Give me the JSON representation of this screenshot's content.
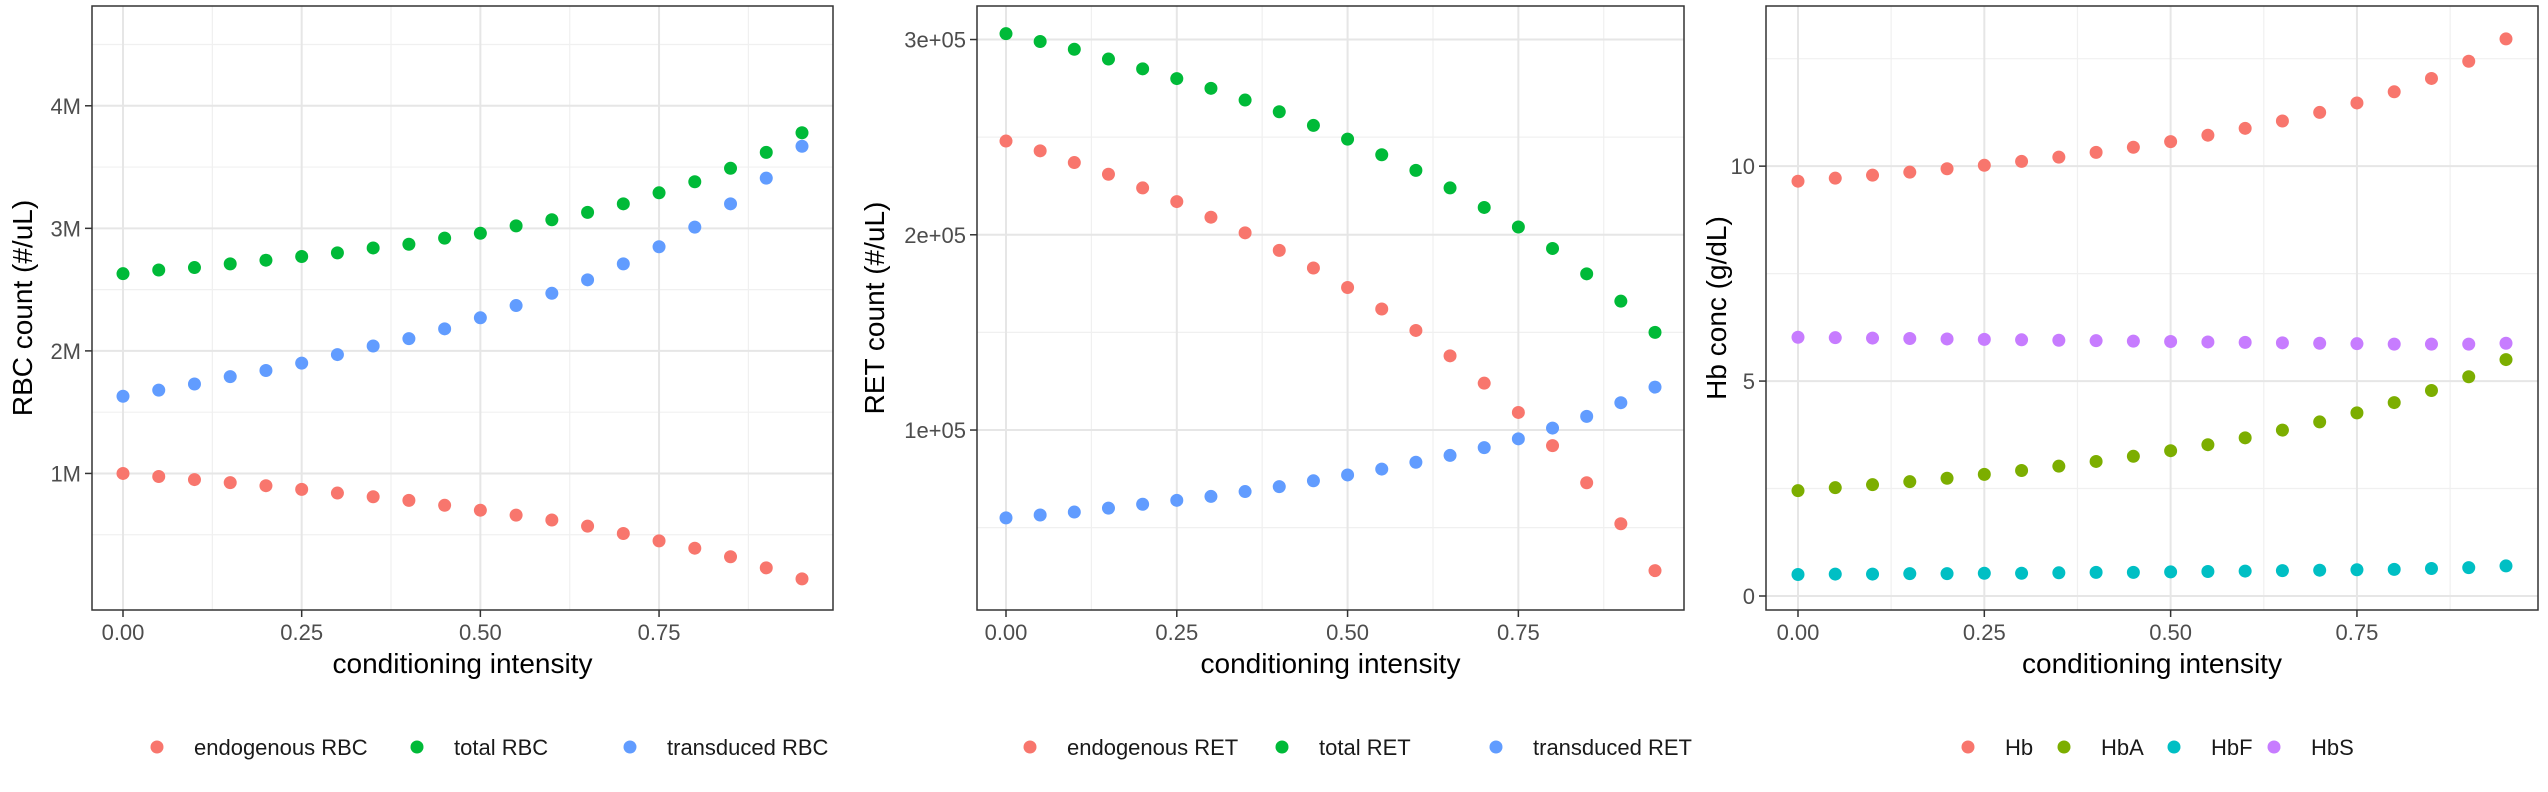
{
  "colors": {
    "red": "#F8766D",
    "green": "#00BA38",
    "blue": "#619CFF",
    "olive": "#7CAE00",
    "cyan": "#00BFC4",
    "purple": "#C77CFF"
  },
  "chart_data": [
    {
      "type": "scatter",
      "xlabel": "conditioning intensity",
      "ylabel": "RBC count (#/uL)",
      "xlim": [
        0,
        0.95
      ],
      "ylim": [
        0,
        4700000
      ],
      "x_ticks": [
        {
          "value": 0,
          "label": "0.00"
        },
        {
          "value": 0.25,
          "label": "0.25"
        },
        {
          "value": 0.5,
          "label": "0.50"
        },
        {
          "value": 0.75,
          "label": "0.75"
        }
      ],
      "y_ticks": [
        {
          "value": 1000000,
          "label": "1M"
        },
        {
          "value": 2000000,
          "label": "2M"
        },
        {
          "value": 3000000,
          "label": "3M"
        },
        {
          "value": 4000000,
          "label": "4M"
        }
      ],
      "legend_position": "bottom",
      "x": [
        0,
        0.05,
        0.1,
        0.15,
        0.2,
        0.25,
        0.3,
        0.35,
        0.4,
        0.45,
        0.5,
        0.55,
        0.6,
        0.65,
        0.7,
        0.75,
        0.8,
        0.85,
        0.9,
        0.95
      ],
      "series": [
        {
          "name": "endogenous RBC",
          "color": "red",
          "values": [
            1000000,
            975000,
            950000,
            925000,
            900000,
            870000,
            840000,
            810000,
            780000,
            740000,
            700000,
            660000,
            620000,
            570000,
            510000,
            450000,
            390000,
            320000,
            230000,
            140000
          ]
        },
        {
          "name": "total RBC",
          "color": "green",
          "values": [
            2630000,
            2660000,
            2680000,
            2710000,
            2740000,
            2770000,
            2800000,
            2840000,
            2870000,
            2920000,
            2960000,
            3020000,
            3070000,
            3130000,
            3200000,
            3290000,
            3380000,
            3490000,
            3620000,
            3780000
          ]
        },
        {
          "name": "transduced RBC",
          "color": "blue",
          "values": [
            1630000,
            1680000,
            1730000,
            1790000,
            1840000,
            1900000,
            1970000,
            2040000,
            2100000,
            2180000,
            2270000,
            2370000,
            2470000,
            2580000,
            2710000,
            2850000,
            3010000,
            3200000,
            3410000,
            3670000
          ]
        }
      ]
    },
    {
      "type": "scatter",
      "xlabel": "conditioning intensity",
      "ylabel": "RET count (#/uL)",
      "xlim": [
        0,
        0.95
      ],
      "ylim": [
        15000,
        310000
      ],
      "x_ticks": [
        {
          "value": 0,
          "label": "0.00"
        },
        {
          "value": 0.25,
          "label": "0.25"
        },
        {
          "value": 0.5,
          "label": "0.50"
        },
        {
          "value": 0.75,
          "label": "0.75"
        }
      ],
      "y_ticks": [
        {
          "value": 100000,
          "label": "1e+05"
        },
        {
          "value": 200000,
          "label": "2e+05"
        },
        {
          "value": 300000,
          "label": "3e+05"
        }
      ],
      "legend_position": "bottom",
      "x": [
        0,
        0.05,
        0.1,
        0.15,
        0.2,
        0.25,
        0.3,
        0.35,
        0.4,
        0.45,
        0.5,
        0.55,
        0.6,
        0.65,
        0.7,
        0.75,
        0.8,
        0.85,
        0.9,
        0.95
      ],
      "series": [
        {
          "name": "endogenous RET",
          "color": "red",
          "values": [
            248000,
            243000,
            237000,
            231000,
            224000,
            217000,
            209000,
            201000,
            192000,
            183000,
            173000,
            162000,
            151000,
            138000,
            124000,
            109000,
            92000,
            73000,
            52000,
            28000
          ]
        },
        {
          "name": "total RET",
          "color": "green",
          "values": [
            303000,
            299000,
            295000,
            290000,
            285000,
            280000,
            275000,
            269000,
            263000,
            256000,
            249000,
            241000,
            233000,
            224000,
            214000,
            204000,
            193000,
            180000,
            166000,
            150000
          ]
        },
        {
          "name": "transduced RET",
          "color": "blue",
          "values": [
            55000,
            56500,
            58000,
            60000,
            62000,
            64000,
            66000,
            68500,
            71000,
            74000,
            77000,
            80000,
            83500,
            87000,
            91000,
            95500,
            101000,
            107000,
            114000,
            122000
          ]
        }
      ]
    },
    {
      "type": "scatter",
      "xlabel": "conditioning intensity",
      "ylabel": "Hb conc (g/dL)",
      "xlim": [
        0,
        0.95
      ],
      "ylim": [
        0,
        13.4
      ],
      "x_ticks": [
        {
          "value": 0,
          "label": "0.00"
        },
        {
          "value": 0.25,
          "label": "0.25"
        },
        {
          "value": 0.5,
          "label": "0.50"
        },
        {
          "value": 0.75,
          "label": "0.75"
        }
      ],
      "y_ticks": [
        {
          "value": 0,
          "label": "0"
        },
        {
          "value": 5,
          "label": "5"
        },
        {
          "value": 10,
          "label": "10"
        }
      ],
      "legend_position": "bottom",
      "x": [
        0,
        0.05,
        0.1,
        0.15,
        0.2,
        0.25,
        0.3,
        0.35,
        0.4,
        0.45,
        0.5,
        0.55,
        0.6,
        0.65,
        0.7,
        0.75,
        0.8,
        0.85,
        0.9,
        0.95
      ],
      "series": [
        {
          "name": "Hb",
          "color": "red",
          "values": [
            9.65,
            9.72,
            9.79,
            9.86,
            9.94,
            10.02,
            10.11,
            10.21,
            10.32,
            10.44,
            10.57,
            10.72,
            10.88,
            11.05,
            11.25,
            11.47,
            11.73,
            12.04,
            12.44,
            12.96
          ]
        },
        {
          "name": "HbA",
          "color": "olive",
          "values": [
            2.45,
            2.52,
            2.59,
            2.66,
            2.74,
            2.83,
            2.92,
            3.02,
            3.13,
            3.25,
            3.38,
            3.52,
            3.68,
            3.86,
            4.05,
            4.26,
            4.5,
            4.78,
            5.1,
            5.5
          ]
        },
        {
          "name": "HbF",
          "color": "cyan",
          "values": [
            0.5,
            0.51,
            0.51,
            0.52,
            0.52,
            0.53,
            0.53,
            0.54,
            0.55,
            0.55,
            0.56,
            0.57,
            0.58,
            0.59,
            0.6,
            0.61,
            0.62,
            0.64,
            0.66,
            0.7
          ]
        },
        {
          "name": "HbS",
          "color": "purple",
          "values": [
            6.02,
            6.01,
            6.0,
            5.99,
            5.98,
            5.97,
            5.96,
            5.95,
            5.94,
            5.93,
            5.92,
            5.91,
            5.9,
            5.89,
            5.88,
            5.87,
            5.86,
            5.86,
            5.86,
            5.88
          ]
        }
      ]
    }
  ]
}
